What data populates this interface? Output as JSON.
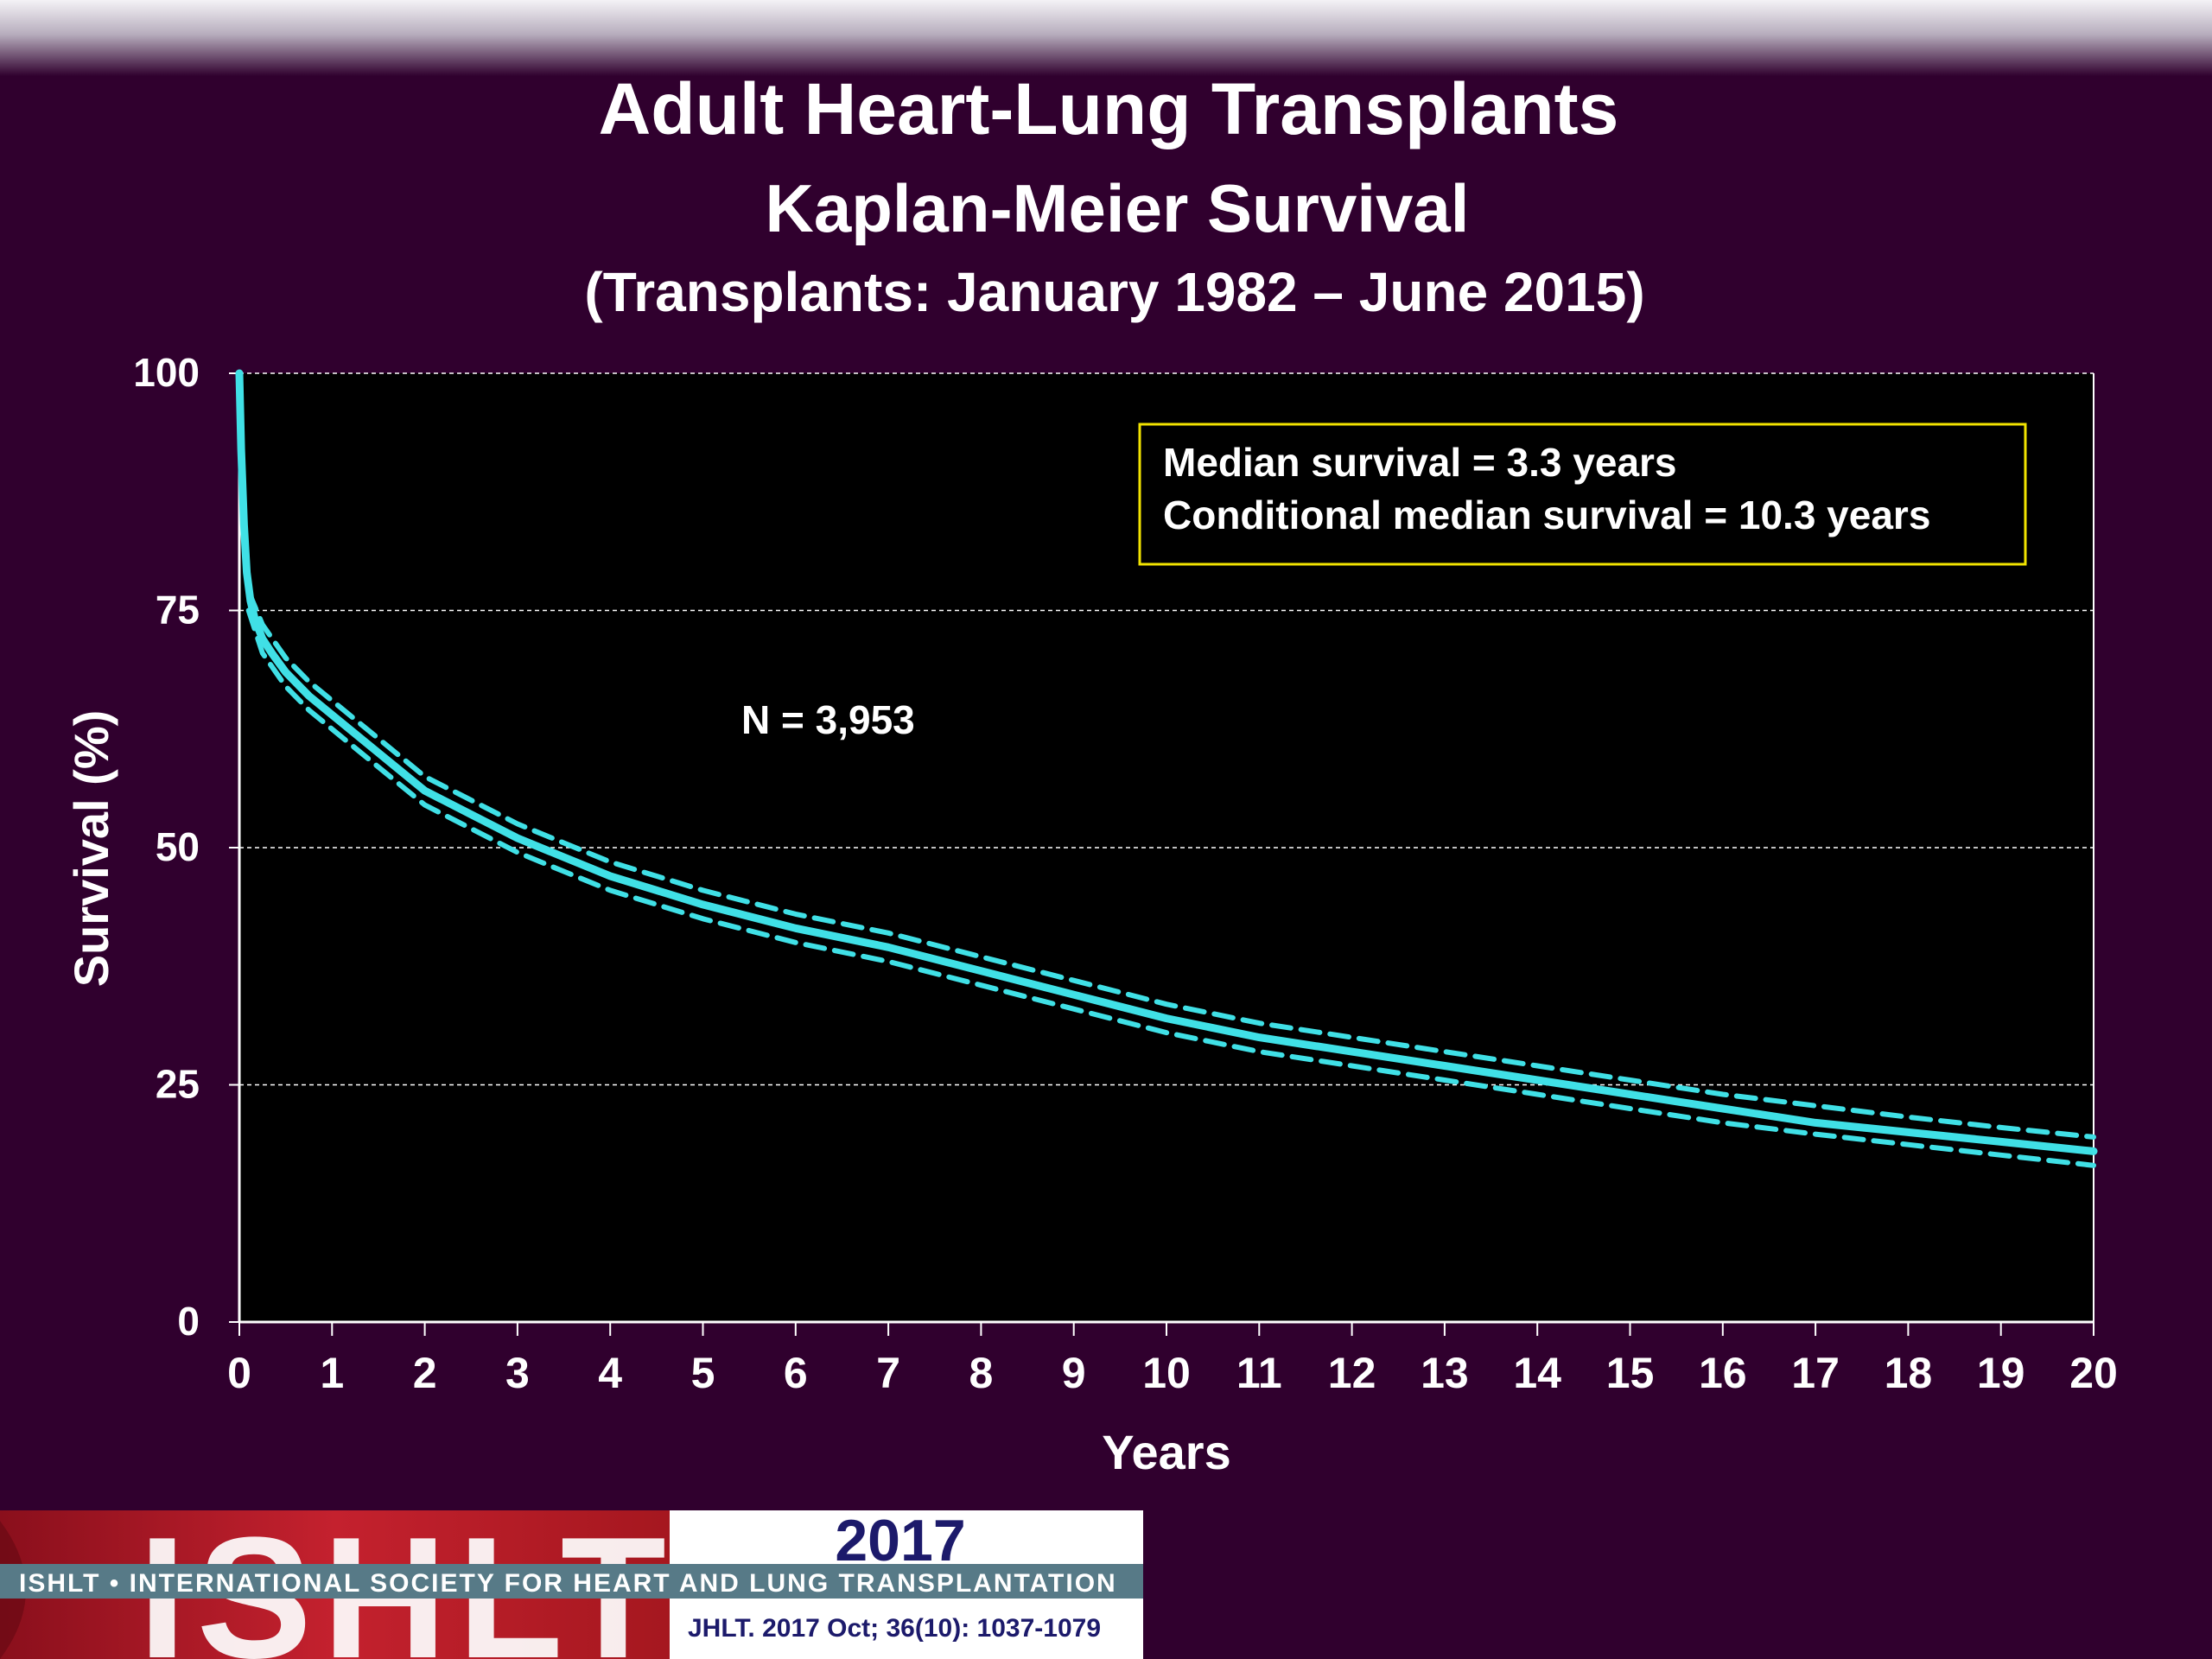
{
  "slide": {
    "title": "Adult Heart-Lung Transplants",
    "subtitle": "Kaplan-Meier Survival",
    "date_range": "(Transplants: January 1982 – June 2015)"
  },
  "chart_data": {
    "type": "line",
    "xlabel": "Years",
    "ylabel": "Survival (%)",
    "xlim": [
      0,
      20
    ],
    "ylim": [
      0,
      100
    ],
    "x_ticks": [
      "0",
      "1",
      "2",
      "3",
      "4",
      "5",
      "6",
      "7",
      "8",
      "9",
      "10",
      "11",
      "12",
      "13",
      "14",
      "15",
      "16",
      "17",
      "18",
      "19",
      "20"
    ],
    "y_ticks": [
      "0",
      "25",
      "50",
      "75",
      "100"
    ],
    "grid": "horizontal dashed",
    "annotations": {
      "median_line1": "Median survival = 3.3 years",
      "median_line2": "Conditional median survival = 10.3 years",
      "n_label": "N = 3,953"
    },
    "series": [
      {
        "role": "estimate",
        "style": "solid",
        "x": [
          0,
          0.02,
          0.05,
          0.08,
          0.12,
          0.17,
          0.25,
          0.35,
          0.5,
          0.75,
          1,
          1.5,
          2,
          2.5,
          3,
          3.5,
          4,
          5,
          6,
          7,
          8,
          9,
          10,
          11,
          12,
          13,
          14,
          15,
          16,
          17,
          18,
          19,
          20
        ],
        "y": [
          100,
          92,
          84,
          79,
          76,
          74,
          72,
          70.5,
          68.5,
          66,
          64,
          60,
          56,
          53.5,
          51,
          49,
          47,
          44,
          41.5,
          39.5,
          37,
          34.5,
          32,
          30,
          28.5,
          27,
          25.5,
          24,
          22.5,
          21,
          20,
          19,
          18
        ]
      },
      {
        "role": "upper-ci",
        "style": "dashed",
        "x": [
          0.1,
          0.25,
          0.5,
          0.75,
          1,
          1.5,
          2,
          2.5,
          3,
          3.5,
          4,
          5,
          6,
          7,
          8,
          9,
          10,
          11,
          12,
          13,
          14,
          15,
          16,
          17,
          18,
          19,
          20
        ],
        "y": [
          77,
          73.5,
          70,
          67.5,
          65.5,
          61.5,
          57.5,
          55,
          52.5,
          50.5,
          48.5,
          45.5,
          43,
          41,
          38.5,
          36,
          33.5,
          31.5,
          30,
          28.5,
          27,
          25.5,
          24,
          22.8,
          21.6,
          20.5,
          19.5
        ]
      },
      {
        "role": "lower-ci",
        "style": "dashed",
        "x": [
          0.1,
          0.25,
          0.5,
          0.75,
          1,
          1.5,
          2,
          2.5,
          3,
          3.5,
          4,
          5,
          6,
          7,
          8,
          9,
          10,
          11,
          12,
          13,
          14,
          15,
          16,
          17,
          18,
          19,
          20
        ],
        "y": [
          75,
          70.5,
          67,
          64.5,
          62.5,
          58.5,
          54.5,
          52,
          49.5,
          47.5,
          45.5,
          42.5,
          40,
          38,
          35.5,
          33,
          30.5,
          28.5,
          27,
          25.5,
          24,
          22.5,
          21,
          19.8,
          18.7,
          17.6,
          16.5
        ]
      }
    ],
    "colors": {
      "line": "#40e0e6",
      "grid": "#ffffff",
      "plot_bg": "#000000",
      "slide_bg": "#30002e",
      "annotation_border": "#f2e300"
    }
  },
  "footer": {
    "logo_text": "ISHLT",
    "society": "ISHLT • INTERNATIONAL SOCIETY FOR HEART AND LUNG TRANSPLANTATION",
    "year": "2017",
    "citation": "JHLT. 2017 Oct; 36(10): 1037-1079"
  }
}
